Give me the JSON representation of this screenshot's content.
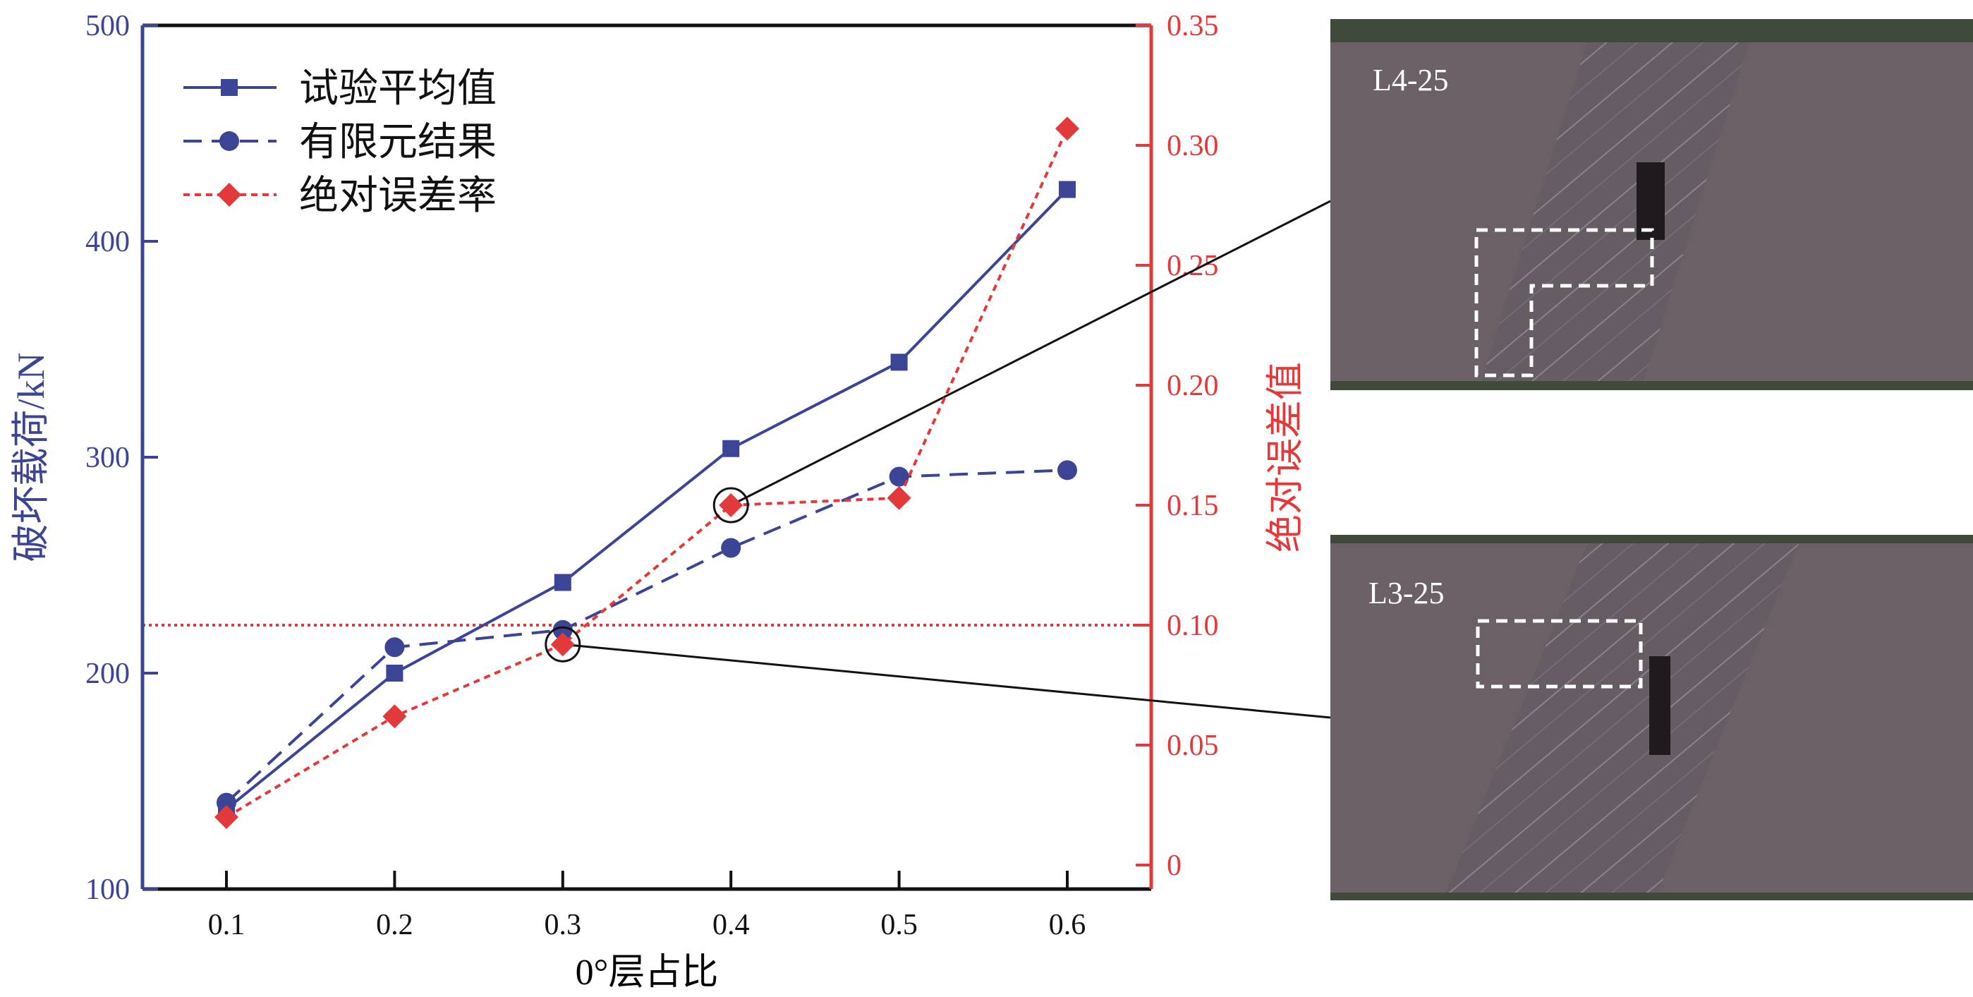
{
  "chart_data": {
    "type": "line",
    "xlabel": "0°层占比",
    "ylabel_left": "破坏载荷/kN",
    "ylabel_right": "绝对误差值",
    "x": [
      0.1,
      0.2,
      0.3,
      0.4,
      0.5,
      0.6
    ],
    "x_ticks": [
      "0.1",
      "0.2",
      "0.3",
      "0.4",
      "0.5",
      "0.6"
    ],
    "xlim": [
      0.05,
      0.65
    ],
    "ylim_left": [
      100,
      500
    ],
    "y_ticks_left": [
      "100",
      "200",
      "300",
      "400",
      "500"
    ],
    "ylim_right": [
      -0.02,
      0.35
    ],
    "y_ticks_right": [
      "0",
      "0.05",
      "0.10",
      "0.15",
      "0.20",
      "0.25",
      "0.30",
      "0.35"
    ],
    "legend_position": "top-left",
    "series": [
      {
        "name": "试验平均值",
        "axis": "left",
        "marker": "square",
        "line": "solid",
        "color": "#3b4495",
        "values": [
          137,
          200,
          242,
          304,
          344,
          424
        ]
      },
      {
        "name": "有限元结果",
        "axis": "left",
        "marker": "circle",
        "line": "dashed",
        "color": "#3b4495",
        "values": [
          140,
          212,
          220,
          258,
          291,
          294
        ]
      },
      {
        "name": "绝对误差率",
        "axis": "right",
        "marker": "diamond",
        "line": "dotted",
        "color": "#e23a3a",
        "values": [
          0.02,
          0.062,
          0.092,
          0.15,
          0.153,
          0.307
        ]
      }
    ],
    "reference_line": {
      "axis": "right",
      "value": 0.1,
      "color": "#e23a3a"
    },
    "left_axis_color": "#3b4495",
    "right_axis_color": "#e23a3a"
  },
  "photos": [
    {
      "label": "L4-25",
      "linked_x": 0.4
    },
    {
      "label": "L3-25",
      "linked_x": 0.3
    }
  ]
}
